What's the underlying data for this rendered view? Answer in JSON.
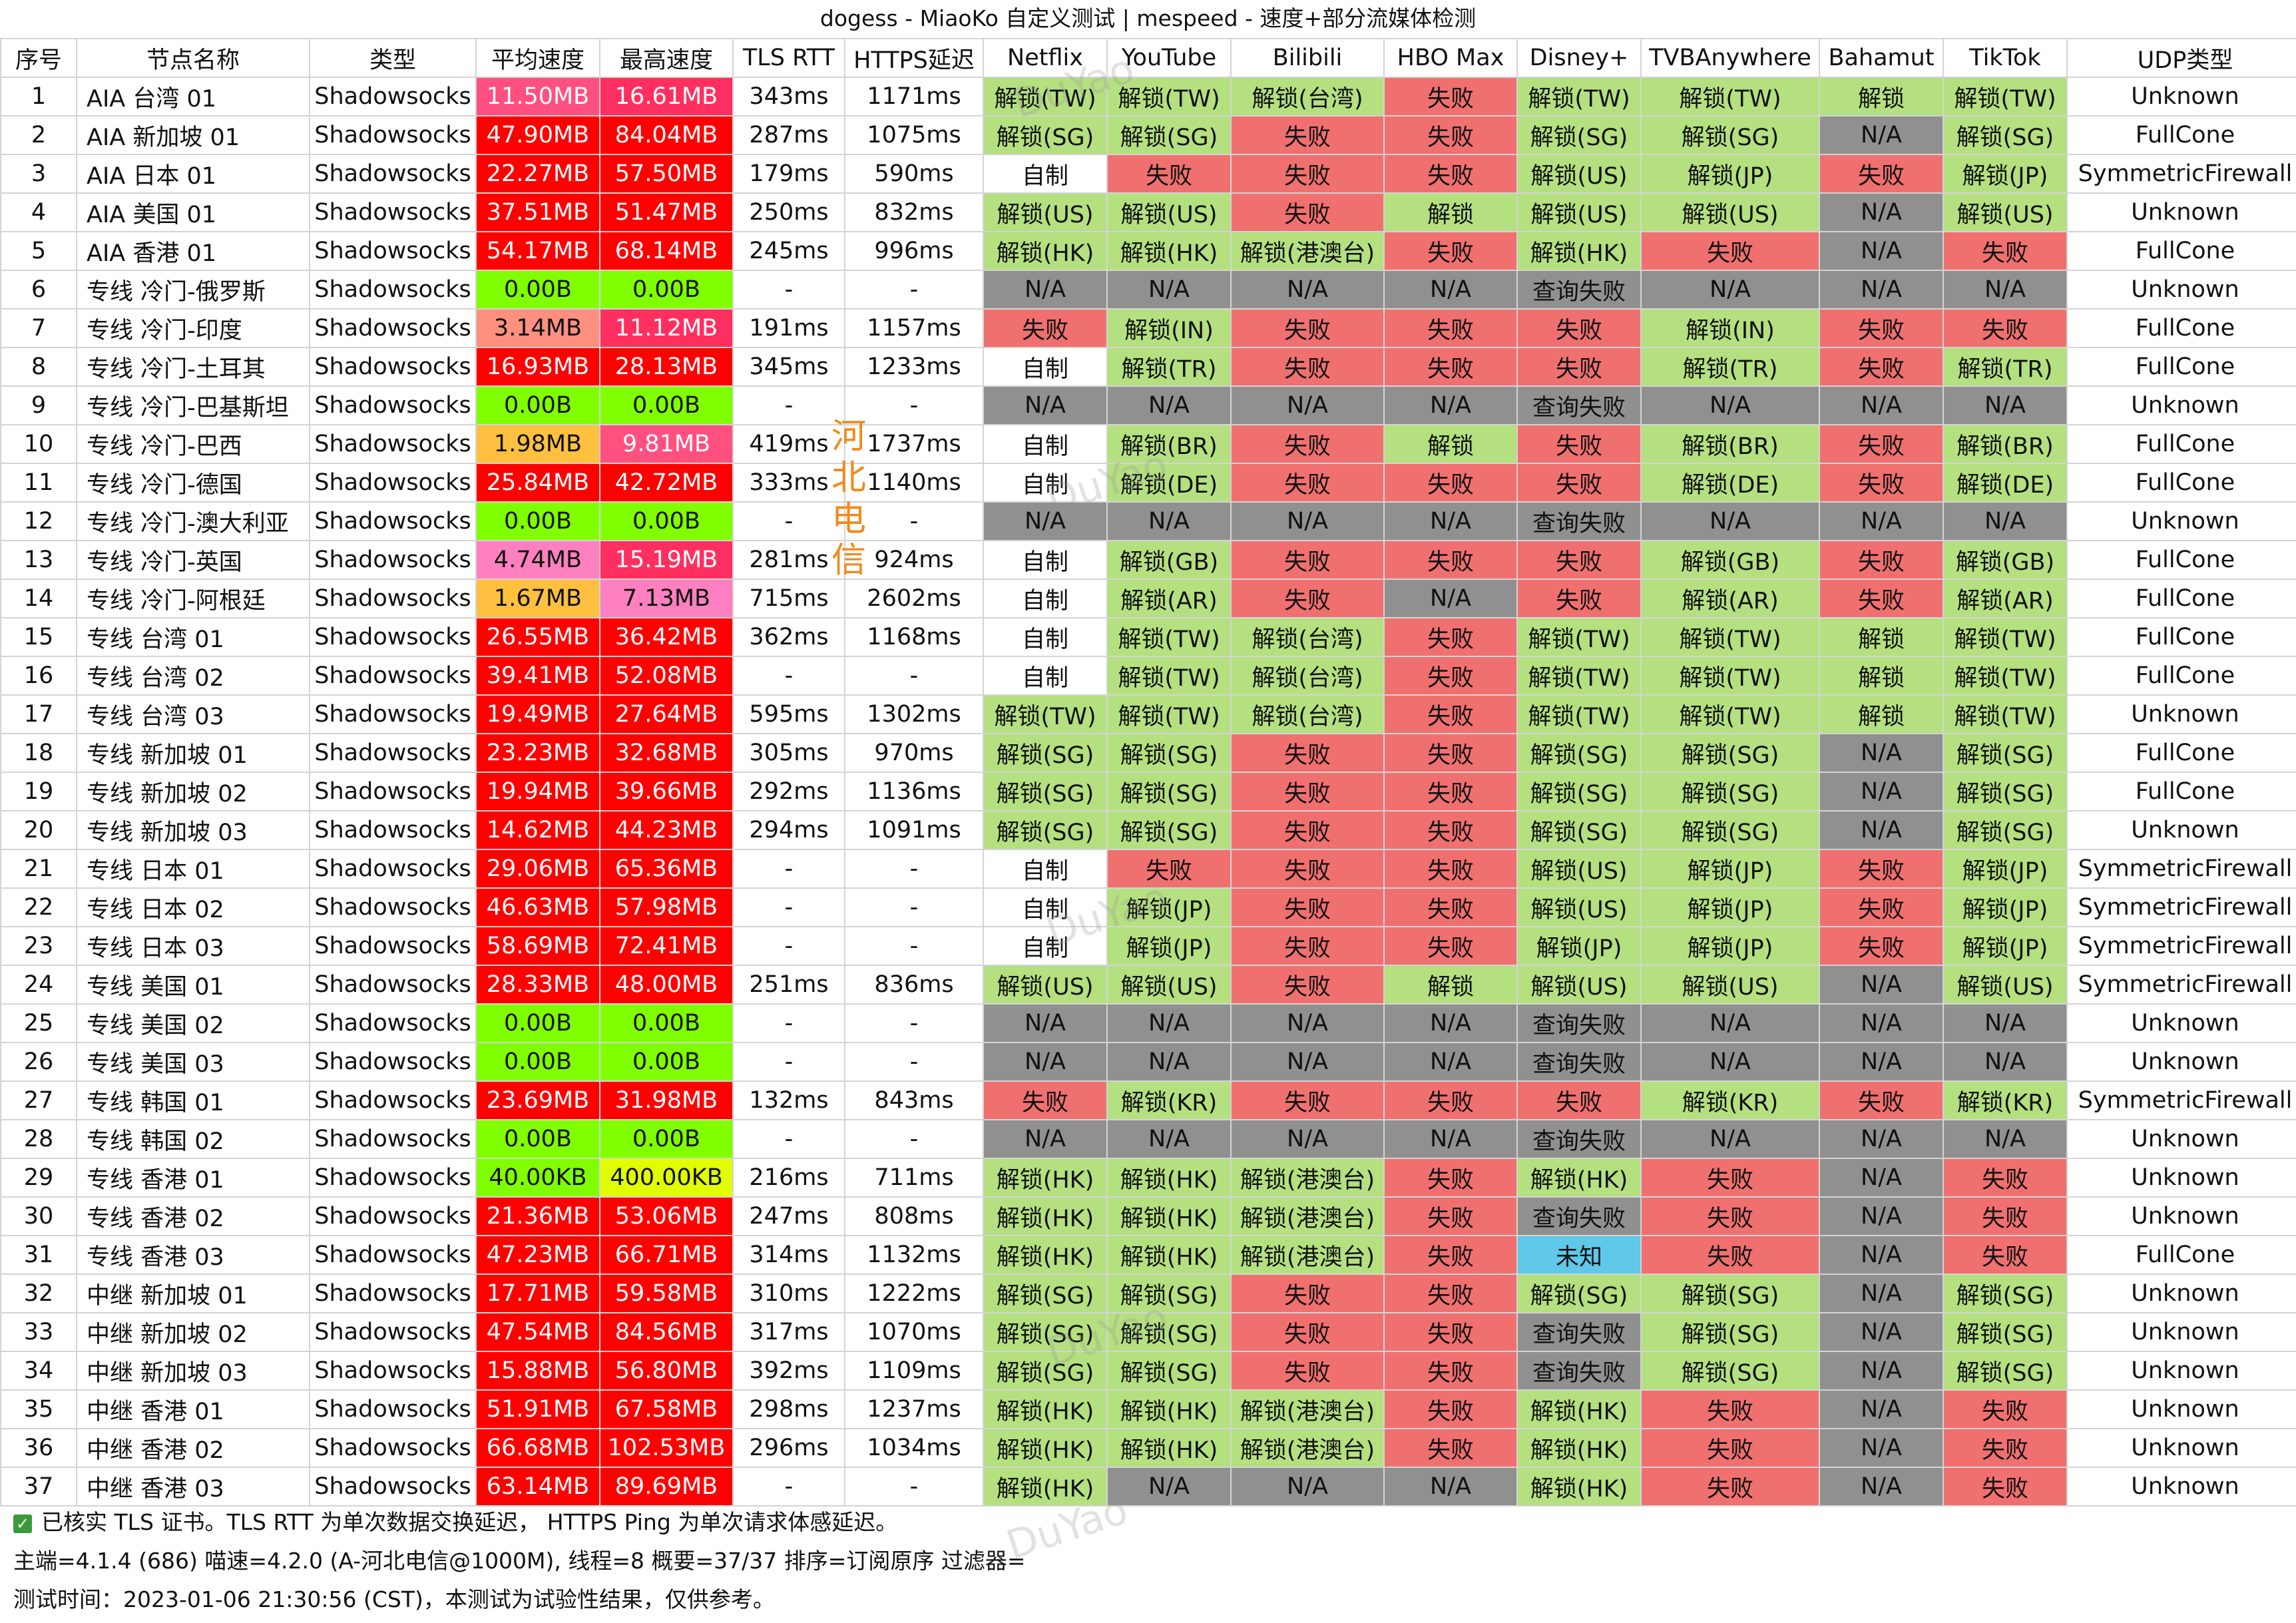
{
  "title": "dogess - MiaoKo 自定义测试 | mespeed - 速度+部分流媒体检测",
  "columns": [
    "序号",
    "节点名称",
    "类型",
    "平均速度",
    "最高速度",
    "TLS RTT",
    "HTTPS延迟",
    "Netflix",
    "YouTube",
    "Bilibili",
    "HBO Max",
    "Disney+",
    "TVBAnywhere",
    "Bahamut",
    "TikTok",
    "UDP类型"
  ],
  "colors": {
    "unlock": "#b4e080",
    "fail": "#f07070",
    "na": "#909090",
    "unknown": "#60c8e8",
    "speed_zero": "#80ff00",
    "speed_yellow": "#f0f000",
    "speed_red": "#ff0000",
    "speed_pinkred": "#ff4060",
    "speed_pink": "#ff80c0",
    "speed_salmon": "#ff9080",
    "speed_orange": "#ffc040"
  },
  "rows": [
    {
      "no": "1",
      "name": "AIA 台湾 01",
      "type": "Shadowsocks",
      "avg": "11.50MB",
      "avg_c": "#ff5080",
      "max": "16.61MB",
      "max_c": "#ff3060",
      "tls": "343ms",
      "https": "1171ms",
      "netflix": "解锁(TW)",
      "youtube": "解锁(TW)",
      "bilibili": "解锁(台湾)",
      "hbo": "失败",
      "disney": "解锁(TW)",
      "tvb": "解锁(TW)",
      "bahamut": "解锁",
      "tiktok": "解锁(TW)",
      "udp": "Unknown"
    },
    {
      "no": "2",
      "name": "AIA 新加坡 01",
      "type": "Shadowsocks",
      "avg": "47.90MB",
      "avg_c": "#ff0000",
      "max": "84.04MB",
      "max_c": "#ff0000",
      "tls": "287ms",
      "https": "1075ms",
      "netflix": "解锁(SG)",
      "youtube": "解锁(SG)",
      "bilibili": "失败",
      "hbo": "失败",
      "disney": "解锁(SG)",
      "tvb": "解锁(SG)",
      "bahamut": "N/A",
      "tiktok": "解锁(SG)",
      "udp": "FullCone"
    },
    {
      "no": "3",
      "name": "AIA 日本 01",
      "type": "Shadowsocks",
      "avg": "22.27MB",
      "avg_c": "#ff0000",
      "max": "57.50MB",
      "max_c": "#ff0000",
      "tls": "179ms",
      "https": "590ms",
      "netflix": "自制",
      "youtube": "失败",
      "bilibili": "失败",
      "hbo": "失败",
      "disney": "解锁(US)",
      "tvb": "解锁(JP)",
      "bahamut": "失败",
      "tiktok": "解锁(JP)",
      "udp": "SymmetricFirewall"
    },
    {
      "no": "4",
      "name": "AIA 美国 01",
      "type": "Shadowsocks",
      "avg": "37.51MB",
      "avg_c": "#ff0000",
      "max": "51.47MB",
      "max_c": "#ff0000",
      "tls": "250ms",
      "https": "832ms",
      "netflix": "解锁(US)",
      "youtube": "解锁(US)",
      "bilibili": "失败",
      "hbo": "解锁",
      "disney": "解锁(US)",
      "tvb": "解锁(US)",
      "bahamut": "N/A",
      "tiktok": "解锁(US)",
      "udp": "Unknown"
    },
    {
      "no": "5",
      "name": "AIA 香港 01",
      "type": "Shadowsocks",
      "avg": "54.17MB",
      "avg_c": "#ff0000",
      "max": "68.14MB",
      "max_c": "#ff0000",
      "tls": "245ms",
      "https": "996ms",
      "netflix": "解锁(HK)",
      "youtube": "解锁(HK)",
      "bilibili": "解锁(港澳台)",
      "hbo": "失败",
      "disney": "解锁(HK)",
      "tvb": "失败",
      "bahamut": "N/A",
      "tiktok": "失败",
      "udp": "FullCone"
    },
    {
      "no": "6",
      "name": "专线 冷门-俄罗斯",
      "type": "Shadowsocks",
      "avg": "0.00B",
      "avg_c": "#80ff00",
      "max": "0.00B",
      "max_c": "#80ff00",
      "tls": "-",
      "https": "-",
      "netflix": "N/A",
      "youtube": "N/A",
      "bilibili": "N/A",
      "hbo": "N/A",
      "disney": "查询失败",
      "tvb": "N/A",
      "bahamut": "N/A",
      "tiktok": "N/A",
      "udp": "Unknown"
    },
    {
      "no": "7",
      "name": "专线 冷门-印度",
      "type": "Shadowsocks",
      "avg": "3.14MB",
      "avg_c": "#ff9080",
      "max": "11.12MB",
      "max_c": "#ff3060",
      "tls": "191ms",
      "https": "1157ms",
      "netflix": "失败",
      "youtube": "解锁(IN)",
      "bilibili": "失败",
      "hbo": "失败",
      "disney": "失败",
      "tvb": "解锁(IN)",
      "bahamut": "失败",
      "tiktok": "失败",
      "udp": "FullCone"
    },
    {
      "no": "8",
      "name": "专线 冷门-土耳其",
      "type": "Shadowsocks",
      "avg": "16.93MB",
      "avg_c": "#ff0000",
      "max": "28.13MB",
      "max_c": "#ff0000",
      "tls": "345ms",
      "https": "1233ms",
      "netflix": "自制",
      "youtube": "解锁(TR)",
      "bilibili": "失败",
      "hbo": "失败",
      "disney": "失败",
      "tvb": "解锁(TR)",
      "bahamut": "失败",
      "tiktok": "解锁(TR)",
      "udp": "FullCone"
    },
    {
      "no": "9",
      "name": "专线 冷门-巴基斯坦",
      "type": "Shadowsocks",
      "avg": "0.00B",
      "avg_c": "#80ff00",
      "max": "0.00B",
      "max_c": "#80ff00",
      "tls": "-",
      "https": "-",
      "netflix": "N/A",
      "youtube": "N/A",
      "bilibili": "N/A",
      "hbo": "N/A",
      "disney": "查询失败",
      "tvb": "N/A",
      "bahamut": "N/A",
      "tiktok": "N/A",
      "udp": "Unknown"
    },
    {
      "no": "10",
      "name": "专线 冷门-巴西",
      "type": "Shadowsocks",
      "avg": "1.98MB",
      "avg_c": "#ffc040",
      "max": "9.81MB",
      "max_c": "#ff5080",
      "tls": "419ms",
      "https": "1737ms",
      "netflix": "自制",
      "youtube": "解锁(BR)",
      "bilibili": "失败",
      "hbo": "解锁",
      "disney": "失败",
      "tvb": "解锁(BR)",
      "bahamut": "失败",
      "tiktok": "解锁(BR)",
      "udp": "FullCone"
    },
    {
      "no": "11",
      "name": "专线 冷门-德国",
      "type": "Shadowsocks",
      "avg": "25.84MB",
      "avg_c": "#ff0000",
      "max": "42.72MB",
      "max_c": "#ff0000",
      "tls": "333ms",
      "https": "1140ms",
      "netflix": "自制",
      "youtube": "解锁(DE)",
      "bilibili": "失败",
      "hbo": "失败",
      "disney": "失败",
      "tvb": "解锁(DE)",
      "bahamut": "失败",
      "tiktok": "解锁(DE)",
      "udp": "FullCone"
    },
    {
      "no": "12",
      "name": "专线 冷门-澳大利亚",
      "type": "Shadowsocks",
      "avg": "0.00B",
      "avg_c": "#80ff00",
      "max": "0.00B",
      "max_c": "#80ff00",
      "tls": "-",
      "https": "-",
      "netflix": "N/A",
      "youtube": "N/A",
      "bilibili": "N/A",
      "hbo": "N/A",
      "disney": "查询失败",
      "tvb": "N/A",
      "bahamut": "N/A",
      "tiktok": "N/A",
      "udp": "Unknown"
    },
    {
      "no": "13",
      "name": "专线 冷门-英国",
      "type": "Shadowsocks",
      "avg": "4.74MB",
      "avg_c": "#ff80c0",
      "max": "15.19MB",
      "max_c": "#ff3060",
      "tls": "281ms",
      "https": "924ms",
      "netflix": "自制",
      "youtube": "解锁(GB)",
      "bilibili": "失败",
      "hbo": "失败",
      "disney": "失败",
      "tvb": "解锁(GB)",
      "bahamut": "失败",
      "tiktok": "解锁(GB)",
      "udp": "FullCone"
    },
    {
      "no": "14",
      "name": "专线 冷门-阿根廷",
      "type": "Shadowsocks",
      "avg": "1.67MB",
      "avg_c": "#ffc040",
      "max": "7.13MB",
      "max_c": "#ff80c0",
      "tls": "715ms",
      "https": "2602ms",
      "netflix": "自制",
      "youtube": "解锁(AR)",
      "bilibili": "失败",
      "hbo": "N/A",
      "disney": "失败",
      "tvb": "解锁(AR)",
      "bahamut": "失败",
      "tiktok": "解锁(AR)",
      "udp": "FullCone"
    },
    {
      "no": "15",
      "name": "专线 台湾 01",
      "type": "Shadowsocks",
      "avg": "26.55MB",
      "avg_c": "#ff0000",
      "max": "36.42MB",
      "max_c": "#ff0000",
      "tls": "362ms",
      "https": "1168ms",
      "netflix": "自制",
      "youtube": "解锁(TW)",
      "bilibili": "解锁(台湾)",
      "hbo": "失败",
      "disney": "解锁(TW)",
      "tvb": "解锁(TW)",
      "bahamut": "解锁",
      "tiktok": "解锁(TW)",
      "udp": "FullCone"
    },
    {
      "no": "16",
      "name": "专线 台湾 02",
      "type": "Shadowsocks",
      "avg": "39.41MB",
      "avg_c": "#ff0000",
      "max": "52.08MB",
      "max_c": "#ff0000",
      "tls": "-",
      "https": "-",
      "netflix": "自制",
      "youtube": "解锁(TW)",
      "bilibili": "解锁(台湾)",
      "hbo": "失败",
      "disney": "解锁(TW)",
      "tvb": "解锁(TW)",
      "bahamut": "解锁",
      "tiktok": "解锁(TW)",
      "udp": "FullCone"
    },
    {
      "no": "17",
      "name": "专线 台湾 03",
      "type": "Shadowsocks",
      "avg": "19.49MB",
      "avg_c": "#ff0000",
      "max": "27.64MB",
      "max_c": "#ff0000",
      "tls": "595ms",
      "https": "1302ms",
      "netflix": "解锁(TW)",
      "youtube": "解锁(TW)",
      "bilibili": "解锁(台湾)",
      "hbo": "失败",
      "disney": "解锁(TW)",
      "tvb": "解锁(TW)",
      "bahamut": "解锁",
      "tiktok": "解锁(TW)",
      "udp": "Unknown"
    },
    {
      "no": "18",
      "name": "专线 新加坡 01",
      "type": "Shadowsocks",
      "avg": "23.23MB",
      "avg_c": "#ff0000",
      "max": "32.68MB",
      "max_c": "#ff0000",
      "tls": "305ms",
      "https": "970ms",
      "netflix": "解锁(SG)",
      "youtube": "解锁(SG)",
      "bilibili": "失败",
      "hbo": "失败",
      "disney": "解锁(SG)",
      "tvb": "解锁(SG)",
      "bahamut": "N/A",
      "tiktok": "解锁(SG)",
      "udp": "FullCone"
    },
    {
      "no": "19",
      "name": "专线 新加坡 02",
      "type": "Shadowsocks",
      "avg": "19.94MB",
      "avg_c": "#ff0000",
      "max": "39.66MB",
      "max_c": "#ff0000",
      "tls": "292ms",
      "https": "1136ms",
      "netflix": "解锁(SG)",
      "youtube": "解锁(SG)",
      "bilibili": "失败",
      "hbo": "失败",
      "disney": "解锁(SG)",
      "tvb": "解锁(SG)",
      "bahamut": "N/A",
      "tiktok": "解锁(SG)",
      "udp": "FullCone"
    },
    {
      "no": "20",
      "name": "专线 新加坡 03",
      "type": "Shadowsocks",
      "avg": "14.62MB",
      "avg_c": "#ff0000",
      "max": "44.23MB",
      "max_c": "#ff0000",
      "tls": "294ms",
      "https": "1091ms",
      "netflix": "解锁(SG)",
      "youtube": "解锁(SG)",
      "bilibili": "失败",
      "hbo": "失败",
      "disney": "解锁(SG)",
      "tvb": "解锁(SG)",
      "bahamut": "N/A",
      "tiktok": "解锁(SG)",
      "udp": "Unknown"
    },
    {
      "no": "21",
      "name": "专线 日本 01",
      "type": "Shadowsocks",
      "avg": "29.06MB",
      "avg_c": "#ff0000",
      "max": "65.36MB",
      "max_c": "#ff0000",
      "tls": "-",
      "https": "-",
      "netflix": "自制",
      "youtube": "失败",
      "bilibili": "失败",
      "hbo": "失败",
      "disney": "解锁(US)",
      "tvb": "解锁(JP)",
      "bahamut": "失败",
      "tiktok": "解锁(JP)",
      "udp": "SymmetricFirewall"
    },
    {
      "no": "22",
      "name": "专线 日本 02",
      "type": "Shadowsocks",
      "avg": "46.63MB",
      "avg_c": "#ff0000",
      "max": "57.98MB",
      "max_c": "#ff0000",
      "tls": "-",
      "https": "-",
      "netflix": "自制",
      "youtube": "解锁(JP)",
      "bilibili": "失败",
      "hbo": "失败",
      "disney": "解锁(US)",
      "tvb": "解锁(JP)",
      "bahamut": "失败",
      "tiktok": "解锁(JP)",
      "udp": "SymmetricFirewall"
    },
    {
      "no": "23",
      "name": "专线 日本 03",
      "type": "Shadowsocks",
      "avg": "58.69MB",
      "avg_c": "#ff0000",
      "max": "72.41MB",
      "max_c": "#ff0000",
      "tls": "-",
      "https": "-",
      "netflix": "自制",
      "youtube": "解锁(JP)",
      "bilibili": "失败",
      "hbo": "失败",
      "disney": "解锁(JP)",
      "tvb": "解锁(JP)",
      "bahamut": "失败",
      "tiktok": "解锁(JP)",
      "udp": "SymmetricFirewall"
    },
    {
      "no": "24",
      "name": "专线 美国 01",
      "type": "Shadowsocks",
      "avg": "28.33MB",
      "avg_c": "#ff0000",
      "max": "48.00MB",
      "max_c": "#ff0000",
      "tls": "251ms",
      "https": "836ms",
      "netflix": "解锁(US)",
      "youtube": "解锁(US)",
      "bilibili": "失败",
      "hbo": "解锁",
      "disney": "解锁(US)",
      "tvb": "解锁(US)",
      "bahamut": "N/A",
      "tiktok": "解锁(US)",
      "udp": "SymmetricFirewall"
    },
    {
      "no": "25",
      "name": "专线 美国 02",
      "type": "Shadowsocks",
      "avg": "0.00B",
      "avg_c": "#80ff00",
      "max": "0.00B",
      "max_c": "#80ff00",
      "tls": "-",
      "https": "-",
      "netflix": "N/A",
      "youtube": "N/A",
      "bilibili": "N/A",
      "hbo": "N/A",
      "disney": "查询失败",
      "tvb": "N/A",
      "bahamut": "N/A",
      "tiktok": "N/A",
      "udp": "Unknown"
    },
    {
      "no": "26",
      "name": "专线 美国 03",
      "type": "Shadowsocks",
      "avg": "0.00B",
      "avg_c": "#80ff00",
      "max": "0.00B",
      "max_c": "#80ff00",
      "tls": "-",
      "https": "-",
      "netflix": "N/A",
      "youtube": "N/A",
      "bilibili": "N/A",
      "hbo": "N/A",
      "disney": "查询失败",
      "tvb": "N/A",
      "bahamut": "N/A",
      "tiktok": "N/A",
      "udp": "Unknown"
    },
    {
      "no": "27",
      "name": "专线 韩国 01",
      "type": "Shadowsocks",
      "avg": "23.69MB",
      "avg_c": "#ff0000",
      "max": "31.98MB",
      "max_c": "#ff0000",
      "tls": "132ms",
      "https": "843ms",
      "netflix": "失败",
      "youtube": "解锁(KR)",
      "bilibili": "失败",
      "hbo": "失败",
      "disney": "失败",
      "tvb": "解锁(KR)",
      "bahamut": "失败",
      "tiktok": "解锁(KR)",
      "udp": "SymmetricFirewall"
    },
    {
      "no": "28",
      "name": "专线 韩国 02",
      "type": "Shadowsocks",
      "avg": "0.00B",
      "avg_c": "#80ff00",
      "max": "0.00B",
      "max_c": "#80ff00",
      "tls": "-",
      "https": "-",
      "netflix": "N/A",
      "youtube": "N/A",
      "bilibili": "N/A",
      "hbo": "N/A",
      "disney": "查询失败",
      "tvb": "N/A",
      "bahamut": "N/A",
      "tiktok": "N/A",
      "udp": "Unknown"
    },
    {
      "no": "29",
      "name": "专线 香港 01",
      "type": "Shadowsocks",
      "avg": "40.00KB",
      "avg_c": "#80ff00",
      "max": "400.00KB",
      "max_c": "#e0ff00",
      "tls": "216ms",
      "https": "711ms",
      "netflix": "解锁(HK)",
      "youtube": "解锁(HK)",
      "bilibili": "解锁(港澳台)",
      "hbo": "失败",
      "disney": "解锁(HK)",
      "tvb": "失败",
      "bahamut": "N/A",
      "tiktok": "失败",
      "udp": "Unknown"
    },
    {
      "no": "30",
      "name": "专线 香港 02",
      "type": "Shadowsocks",
      "avg": "21.36MB",
      "avg_c": "#ff0000",
      "max": "53.06MB",
      "max_c": "#ff0000",
      "tls": "247ms",
      "https": "808ms",
      "netflix": "解锁(HK)",
      "youtube": "解锁(HK)",
      "bilibili": "解锁(港澳台)",
      "hbo": "失败",
      "disney": "查询失败",
      "tvb": "失败",
      "bahamut": "N/A",
      "tiktok": "失败",
      "udp": "Unknown"
    },
    {
      "no": "31",
      "name": "专线 香港 03",
      "type": "Shadowsocks",
      "avg": "47.23MB",
      "avg_c": "#ff0000",
      "max": "66.71MB",
      "max_c": "#ff0000",
      "tls": "314ms",
      "https": "1132ms",
      "netflix": "解锁(HK)",
      "youtube": "解锁(HK)",
      "bilibili": "解锁(港澳台)",
      "hbo": "失败",
      "disney": "未知",
      "tvb": "失败",
      "bahamut": "N/A",
      "tiktok": "失败",
      "udp": "FullCone"
    },
    {
      "no": "32",
      "name": "中继 新加坡 01",
      "type": "Shadowsocks",
      "avg": "17.71MB",
      "avg_c": "#ff0000",
      "max": "59.58MB",
      "max_c": "#ff0000",
      "tls": "310ms",
      "https": "1222ms",
      "netflix": "解锁(SG)",
      "youtube": "解锁(SG)",
      "bilibili": "失败",
      "hbo": "失败",
      "disney": "解锁(SG)",
      "tvb": "解锁(SG)",
      "bahamut": "N/A",
      "tiktok": "解锁(SG)",
      "udp": "Unknown"
    },
    {
      "no": "33",
      "name": "中继 新加坡 02",
      "type": "Shadowsocks",
      "avg": "47.54MB",
      "avg_c": "#ff0000",
      "max": "84.56MB",
      "max_c": "#ff0000",
      "tls": "317ms",
      "https": "1070ms",
      "netflix": "解锁(SG)",
      "youtube": "解锁(SG)",
      "bilibili": "失败",
      "hbo": "失败",
      "disney": "查询失败",
      "tvb": "解锁(SG)",
      "bahamut": "N/A",
      "tiktok": "解锁(SG)",
      "udp": "Unknown"
    },
    {
      "no": "34",
      "name": "中继 新加坡 03",
      "type": "Shadowsocks",
      "avg": "15.88MB",
      "avg_c": "#ff0000",
      "max": "56.80MB",
      "max_c": "#ff0000",
      "tls": "392ms",
      "https": "1109ms",
      "netflix": "解锁(SG)",
      "youtube": "解锁(SG)",
      "bilibili": "失败",
      "hbo": "失败",
      "disney": "查询失败",
      "tvb": "解锁(SG)",
      "bahamut": "N/A",
      "tiktok": "解锁(SG)",
      "udp": "Unknown"
    },
    {
      "no": "35",
      "name": "中继 香港 01",
      "type": "Shadowsocks",
      "avg": "51.91MB",
      "avg_c": "#ff0000",
      "max": "67.58MB",
      "max_c": "#ff0000",
      "tls": "298ms",
      "https": "1237ms",
      "netflix": "解锁(HK)",
      "youtube": "解锁(HK)",
      "bilibili": "解锁(港澳台)",
      "hbo": "失败",
      "disney": "解锁(HK)",
      "tvb": "失败",
      "bahamut": "N/A",
      "tiktok": "失败",
      "udp": "Unknown"
    },
    {
      "no": "36",
      "name": "中继 香港 02",
      "type": "Shadowsocks",
      "avg": "66.68MB",
      "avg_c": "#ff0000",
      "max": "102.53MB",
      "max_c": "#ff0000",
      "tls": "296ms",
      "https": "1034ms",
      "netflix": "解锁(HK)",
      "youtube": "解锁(HK)",
      "bilibili": "解锁(港澳台)",
      "hbo": "失败",
      "disney": "解锁(HK)",
      "tvb": "失败",
      "bahamut": "N/A",
      "tiktok": "失败",
      "udp": "Unknown"
    },
    {
      "no": "37",
      "name": "中继 香港 03",
      "type": "Shadowsocks",
      "avg": "63.14MB",
      "avg_c": "#ff0000",
      "max": "89.69MB",
      "max_c": "#ff0000",
      "tls": "-",
      "https": "-",
      "netflix": "解锁(HK)",
      "youtube": "N/A",
      "bilibili": "N/A",
      "hbo": "N/A",
      "disney": "解锁(HK)",
      "tvb": "失败",
      "bahamut": "N/A",
      "tiktok": "失败",
      "udp": "Unknown"
    }
  ],
  "footer": {
    "line1": "已核实 TLS 证书。TLS RTT 为单次数据交换延迟， HTTPS Ping 为单次请求体感延迟。",
    "line2": "主端=4.1.4 (686) 喵速=4.2.0 (A-河北电信@1000M), 线程=8 概要=37/37 排序=订阅原序 过滤器=",
    "line3": "测试时间：2023-01-06 21:30:56 (CST)，本测试为试验性结果，仅供参考。"
  },
  "watermark": {
    "vertical": "河北电信",
    "ghost": "DuYao"
  }
}
